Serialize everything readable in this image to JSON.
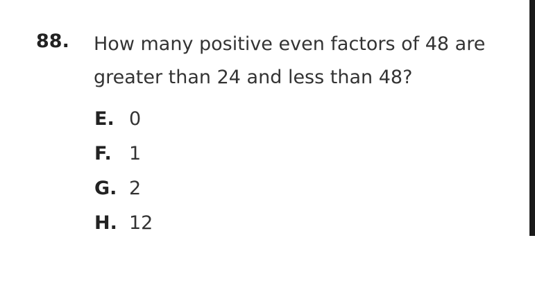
{
  "question": {
    "number": "88.",
    "line1": "How many positive even factors of 48 are",
    "line2": "greater than 24 and less than 48?"
  },
  "choices": [
    {
      "letter": "E.",
      "value": "0"
    },
    {
      "letter": "F.",
      "value": "1"
    },
    {
      "letter": "G.",
      "value": "2"
    },
    {
      "letter": "H.",
      "value": "12"
    }
  ]
}
